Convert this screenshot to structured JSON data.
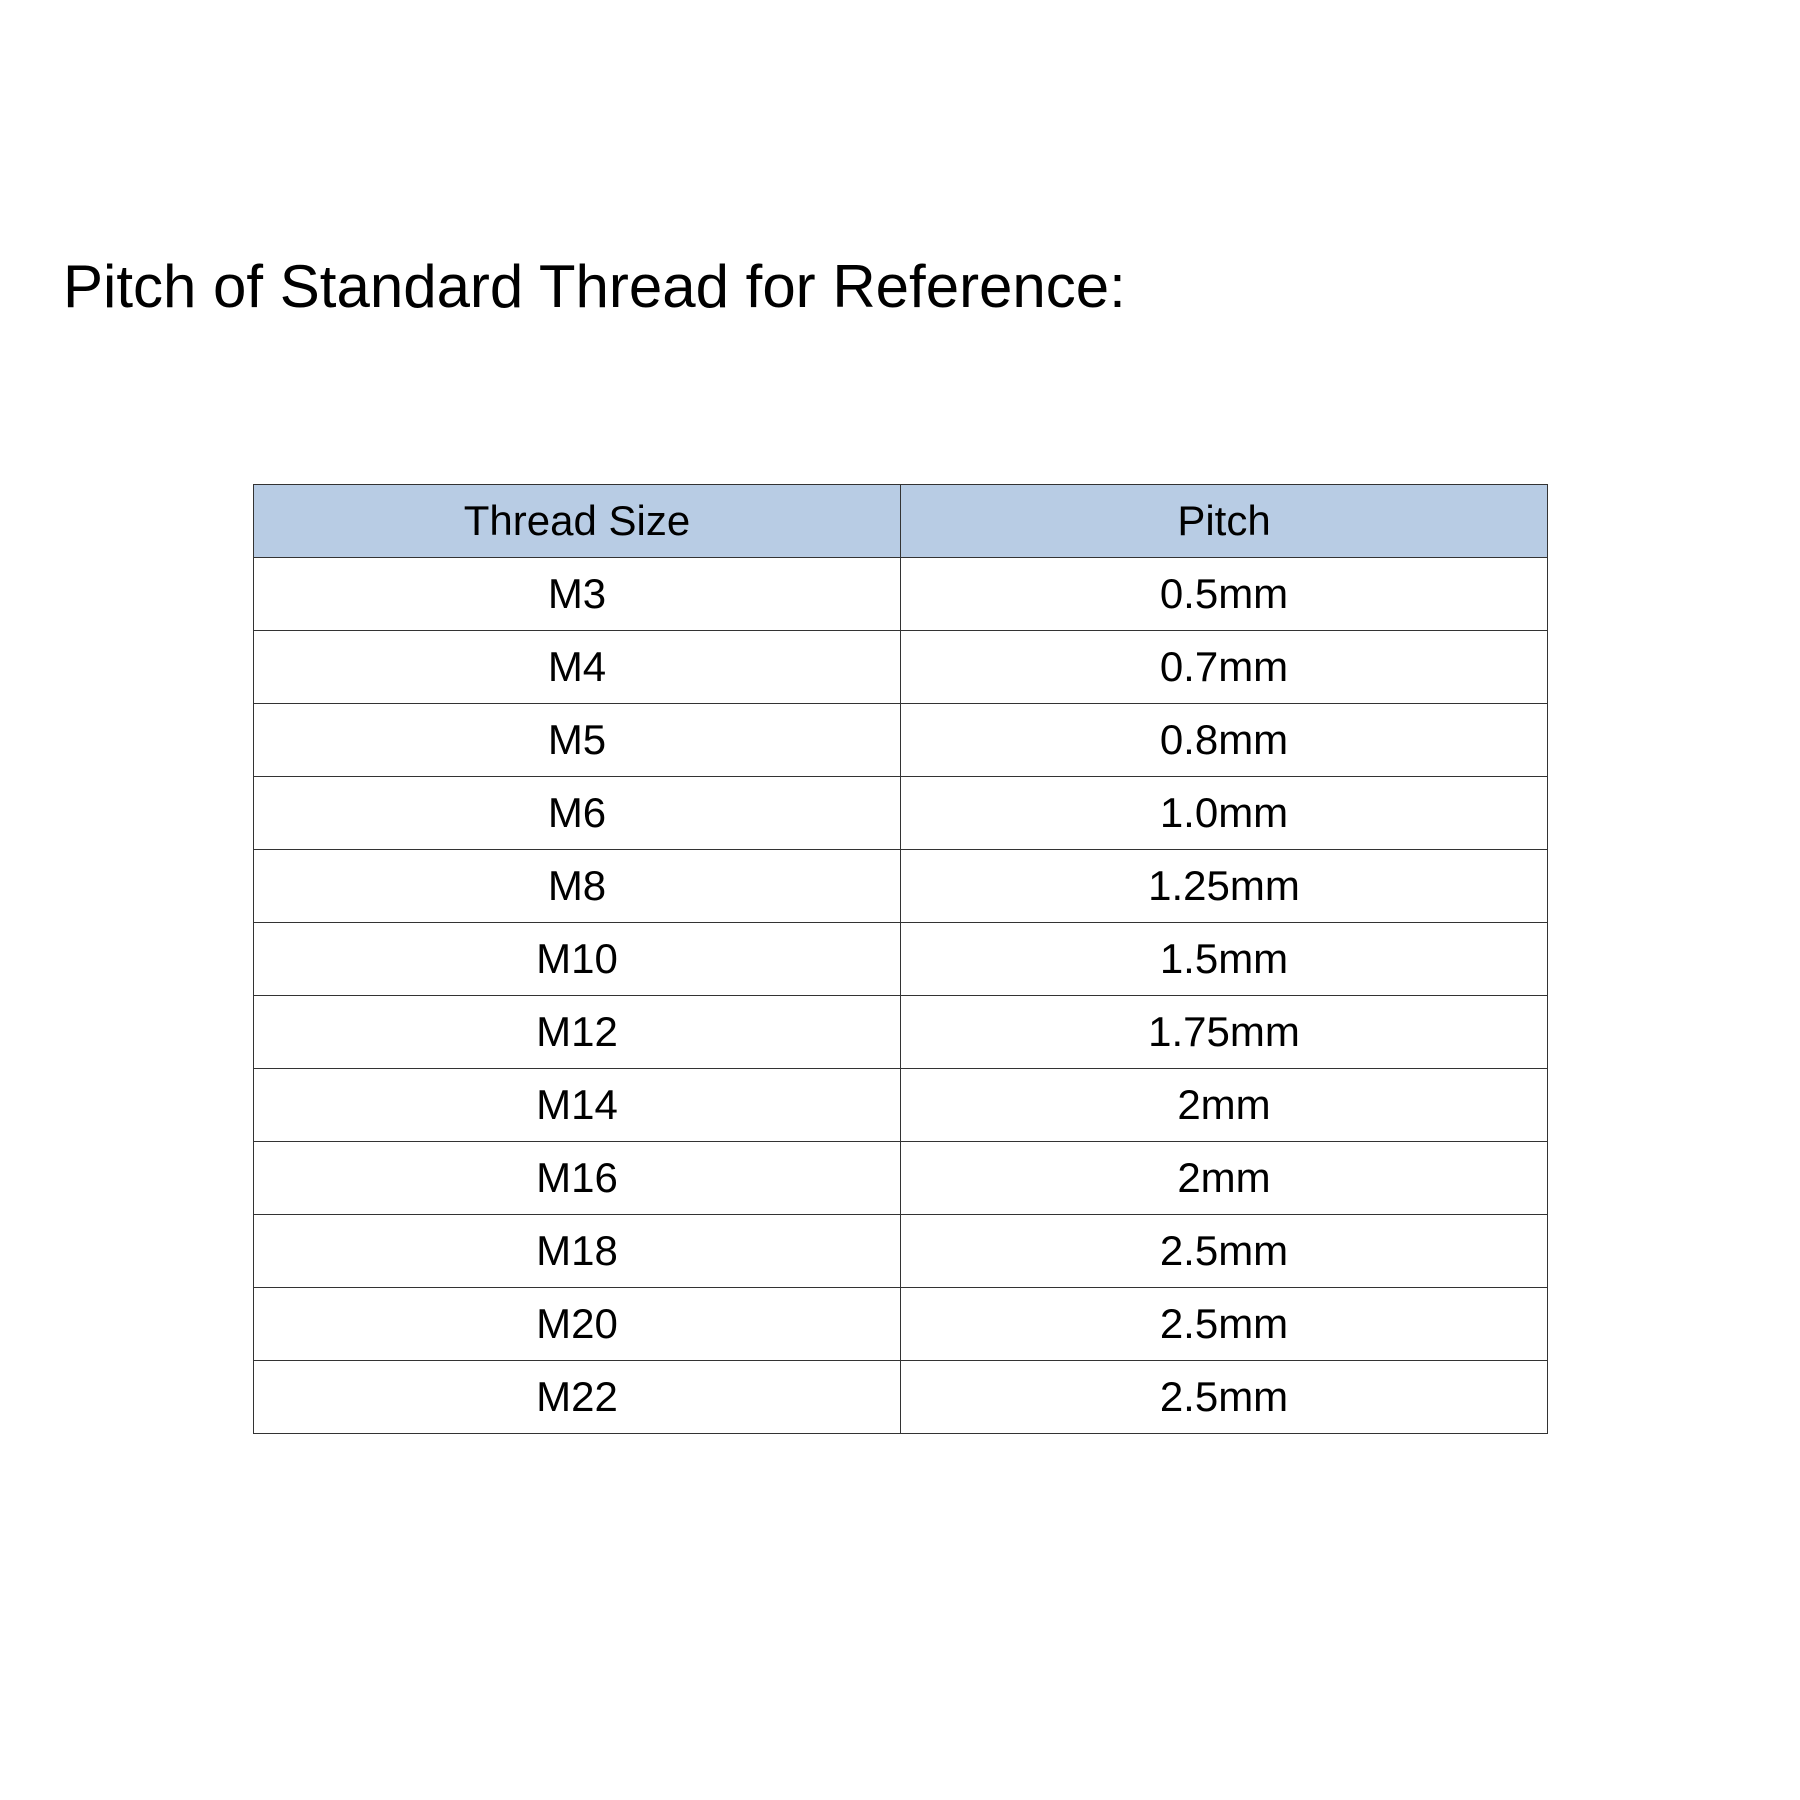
{
  "title": "Pitch of Standard Thread for Reference:",
  "header_color": "#b8cce4",
  "table": {
    "headers": [
      "Thread Size",
      "Pitch"
    ],
    "rows": [
      [
        "M3",
        "0.5mm"
      ],
      [
        "M4",
        "0.7mm"
      ],
      [
        "M5",
        "0.8mm"
      ],
      [
        "M6",
        "1.0mm"
      ],
      [
        "M8",
        "1.25mm"
      ],
      [
        "M10",
        "1.5mm"
      ],
      [
        "M12",
        "1.75mm"
      ],
      [
        "M14",
        "2mm"
      ],
      [
        "M16",
        "2mm"
      ],
      [
        "M18",
        "2.5mm"
      ],
      [
        "M20",
        "2.5mm"
      ],
      [
        "M22",
        "2.5mm"
      ]
    ]
  }
}
